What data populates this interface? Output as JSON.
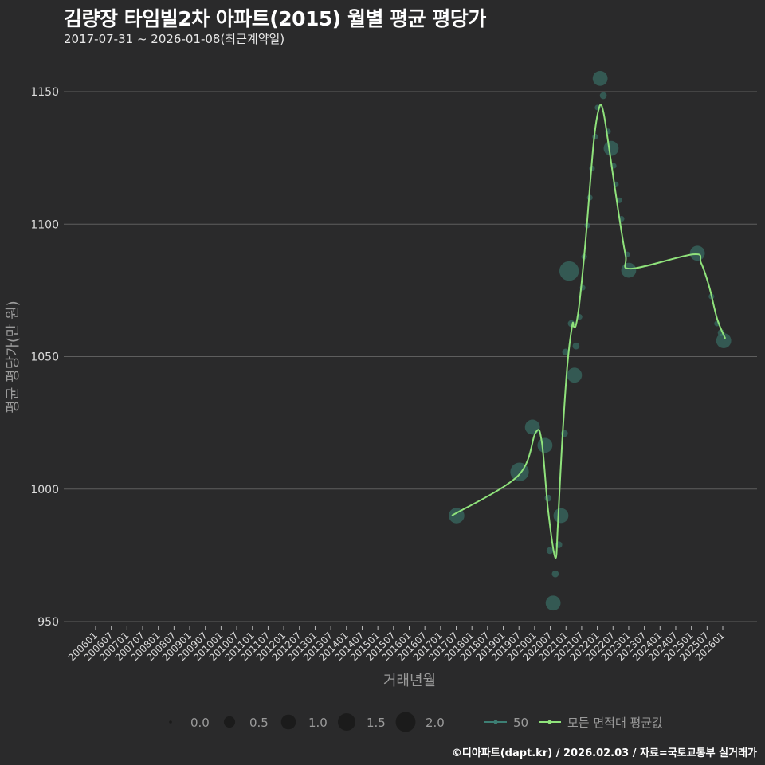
{
  "title": "김량장 타임빌2차 아파트(2015) 월별 평균 평당가",
  "subtitle": "2017-07-31 ~ 2026-01-08(최근계약일)",
  "footer": "©디아파트(dapt.kr) / 2026.02.03 / 자료=국토교통부 실거래가",
  "colors": {
    "bubble": "#3d7f74",
    "line": "#8fe27b",
    "grid": "#5e5e5e"
  },
  "chart_data": {
    "type": "scatter",
    "xlabel": "거래년월",
    "ylabel": "평균 평당가(만 원)",
    "ylim": [
      950,
      1150
    ],
    "yticks": [
      950,
      1000,
      1050,
      1100,
      1150
    ],
    "xlim": [
      2006.0,
      2026.0
    ],
    "xticks": [
      "200601",
      "200607",
      "200701",
      "200707",
      "200801",
      "200807",
      "200901",
      "200907",
      "201001",
      "201007",
      "201101",
      "201107",
      "201201",
      "201207",
      "201301",
      "201307",
      "201401",
      "201407",
      "201501",
      "201507",
      "201601",
      "201607",
      "201701",
      "201707",
      "201801",
      "201807",
      "201901",
      "201907",
      "202001",
      "202007",
      "202101",
      "202107",
      "202201",
      "202207",
      "202301",
      "202307",
      "202401",
      "202407",
      "202501",
      "202507",
      "202601"
    ],
    "series": [
      {
        "name": "50",
        "type": "bubble",
        "points": [
          {
            "x": 2017.51,
            "y": 990,
            "s": 1.0
          },
          {
            "x": 2019.52,
            "y": 1006.5,
            "s": 1.5
          },
          {
            "x": 2019.93,
            "y": 1023.4,
            "s": 0.9
          },
          {
            "x": 2020.33,
            "y": 1016.5,
            "s": 0.9
          },
          {
            "x": 2020.43,
            "y": 996.6,
            "s": 0.1
          },
          {
            "x": 2020.49,
            "y": 976.8,
            "s": 0.1
          },
          {
            "x": 2020.66,
            "y": 968,
            "s": 0.1
          },
          {
            "x": 2020.59,
            "y": 957,
            "s": 0.9
          },
          {
            "x": 2020.77,
            "y": 979,
            "s": 0.1
          },
          {
            "x": 2020.84,
            "y": 990,
            "s": 0.9
          },
          {
            "x": 2020.95,
            "y": 1021,
            "s": 0.1
          },
          {
            "x": 2020.99,
            "y": 1051.7,
            "s": 0.1
          },
          {
            "x": 2021.1,
            "y": 1082.3,
            "s": 1.7
          },
          {
            "x": 2021.17,
            "y": 1062.5,
            "s": 0.1
          },
          {
            "x": 2021.27,
            "y": 1043,
            "s": 0.9
          },
          {
            "x": 2021.32,
            "y": 1054,
            "s": 0.1
          },
          {
            "x": 2021.43,
            "y": 1065,
            "s": 0.05
          },
          {
            "x": 2021.53,
            "y": 1076,
            "s": 0.05
          },
          {
            "x": 2021.58,
            "y": 1087.7,
            "s": 0.05
          },
          {
            "x": 2021.68,
            "y": 1099.5,
            "s": 0.05
          },
          {
            "x": 2021.76,
            "y": 1110,
            "s": 0.05
          },
          {
            "x": 2021.83,
            "y": 1121,
            "s": 0.05
          },
          {
            "x": 2021.93,
            "y": 1133,
            "s": 0.05
          },
          {
            "x": 2022.01,
            "y": 1144,
            "s": 0.05
          },
          {
            "x": 2022.09,
            "y": 1155,
            "s": 0.9
          },
          {
            "x": 2022.19,
            "y": 1148.5,
            "s": 0.1
          },
          {
            "x": 2022.34,
            "y": 1135,
            "s": 0.05
          },
          {
            "x": 2022.44,
            "y": 1128.6,
            "s": 0.9
          },
          {
            "x": 2022.52,
            "y": 1122,
            "s": 0.05
          },
          {
            "x": 2022.59,
            "y": 1115,
            "s": 0.05
          },
          {
            "x": 2022.7,
            "y": 1109,
            "s": 0.05
          },
          {
            "x": 2022.77,
            "y": 1102,
            "s": 0.05
          },
          {
            "x": 2022.95,
            "y": 1088.6,
            "s": 0.05
          },
          {
            "x": 2023.0,
            "y": 1082.6,
            "s": 0.9
          },
          {
            "x": 2025.19,
            "y": 1089,
            "s": 0.9
          },
          {
            "x": 2025.64,
            "y": 1072.7,
            "s": 0.05
          },
          {
            "x": 2025.82,
            "y": 1062.5,
            "s": 0.05
          },
          {
            "x": 2025.95,
            "y": 1059,
            "s": 0.1
          },
          {
            "x": 2026.03,
            "y": 1056,
            "s": 0.9
          }
        ]
      },
      {
        "name": "모든 면적대 평균값",
        "type": "line",
        "points": [
          {
            "x": 2017.36,
            "y": 990
          },
          {
            "x": 2019.47,
            "y": 1005
          },
          {
            "x": 2020.03,
            "y": 1021.3
          },
          {
            "x": 2020.23,
            "y": 1017.7
          },
          {
            "x": 2020.43,
            "y": 992.1
          },
          {
            "x": 2020.66,
            "y": 974.1
          },
          {
            "x": 2020.74,
            "y": 986.1
          },
          {
            "x": 2020.87,
            "y": 1016.2
          },
          {
            "x": 2021.04,
            "y": 1046.2
          },
          {
            "x": 2021.2,
            "y": 1061.9
          },
          {
            "x": 2021.25,
            "y": 1061.3
          },
          {
            "x": 2021.32,
            "y": 1062
          },
          {
            "x": 2021.43,
            "y": 1070.3
          },
          {
            "x": 2021.63,
            "y": 1094.4
          },
          {
            "x": 2021.88,
            "y": 1130.5
          },
          {
            "x": 2022.06,
            "y": 1144
          },
          {
            "x": 2022.19,
            "y": 1142.5
          },
          {
            "x": 2022.39,
            "y": 1127.4
          },
          {
            "x": 2022.65,
            "y": 1106.4
          },
          {
            "x": 2022.9,
            "y": 1088.3
          },
          {
            "x": 2023.08,
            "y": 1083.2
          },
          {
            "x": 2025.06,
            "y": 1088.6
          },
          {
            "x": 2025.31,
            "y": 1085.3
          },
          {
            "x": 2025.57,
            "y": 1076.3
          },
          {
            "x": 2025.82,
            "y": 1064.3
          },
          {
            "x": 2026.08,
            "y": 1056.8
          }
        ]
      }
    ],
    "size_legend": {
      "values": [
        0.0,
        0.5,
        1.0,
        1.5,
        2.0
      ],
      "labels": [
        "0.0",
        "0.5",
        "1.0",
        "1.5",
        "2.0"
      ]
    },
    "legend_position": "bottom",
    "grid": true
  }
}
